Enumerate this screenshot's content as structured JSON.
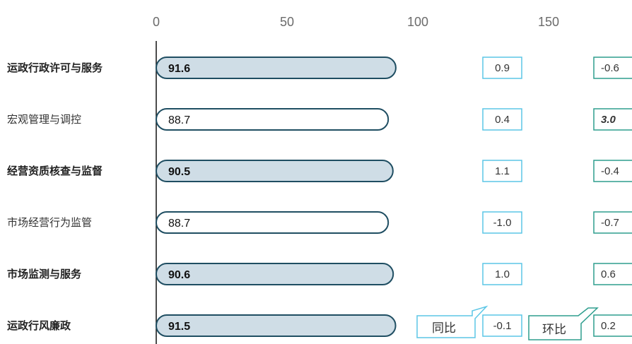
{
  "chart_data": {
    "type": "bar",
    "orientation": "horizontal",
    "x_ticks": [
      0,
      50,
      100,
      150
    ],
    "xlim": [
      0,
      180
    ],
    "categories": [
      "运政行政许可与服务",
      "宏观管理与调控",
      "经营资质核查与监督",
      "市场经营行为监管",
      "市场监测与服务",
      "运政行风廉政"
    ],
    "values": [
      91.6,
      88.7,
      90.5,
      88.7,
      90.6,
      91.5
    ],
    "value_labels": [
      "91.6",
      "88.7",
      "90.5",
      "88.7",
      "90.6",
      "91.5"
    ],
    "highlighted": [
      true,
      false,
      true,
      false,
      true,
      true
    ],
    "yoy": [
      "0.9",
      "0.4",
      "1.1",
      "-1.0",
      "1.0",
      "-0.1"
    ],
    "mom": [
      "-0.6",
      "3.0",
      "-0.4",
      "-0.7",
      "0.6",
      "0.2"
    ],
    "mom_emphasis": [
      false,
      true,
      false,
      false,
      false,
      false
    ],
    "yoy_callout": "同比",
    "mom_callout": "环比",
    "colors": {
      "bar_fill_highlight": "#cfdde6",
      "bar_fill_plain": "#ffffff",
      "bar_stroke": "#1f4e62",
      "yoy_border": "#5bc6e6",
      "mom_border": "#2e9e8e",
      "callout_border": "#5bc6e6",
      "axis": "#111111"
    }
  }
}
